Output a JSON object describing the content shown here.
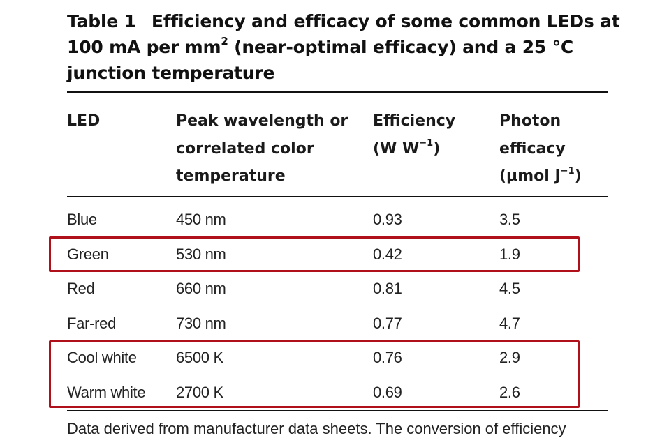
{
  "title": {
    "label": "Table 1",
    "text_a": "Efficiency and efficacy of some common LEDs at 100 mA per mm",
    "sup": "2",
    "text_b": " (near-optimal efficacy) and a 25 °C junction temperature"
  },
  "headers": {
    "led": "LED",
    "wavelength": [
      "Peak wavelength or",
      "correlated color",
      "temperature"
    ],
    "efficiency": [
      "Efficiency",
      "(W W",
      "−1",
      ")"
    ],
    "efficacy": [
      "Photon",
      "efficacy",
      "(μmol J",
      "−1",
      ")"
    ]
  },
  "rows": [
    {
      "led": "Blue",
      "wavelength": "450 nm",
      "efficiency": "0.93",
      "efficacy": "3.5"
    },
    {
      "led": "Green",
      "wavelength": "530 nm",
      "efficiency": "0.42",
      "efficacy": "1.9"
    },
    {
      "led": "Red",
      "wavelength": "660 nm",
      "efficiency": "0.81",
      "efficacy": "4.5"
    },
    {
      "led": "Far-red",
      "wavelength": "730 nm",
      "efficiency": "0.77",
      "efficacy": "4.7"
    },
    {
      "led": "Cool white",
      "wavelength": "6500 K",
      "efficiency": "0.76",
      "efficacy": "2.9"
    },
    {
      "led": "Warm white",
      "wavelength": "2700 K",
      "efficiency": "0.69",
      "efficacy": "2.6"
    }
  ],
  "highlight_color": "#b0101a",
  "footnote": "Data derived from manufacturer data sheets. The conversion of efficiency"
}
